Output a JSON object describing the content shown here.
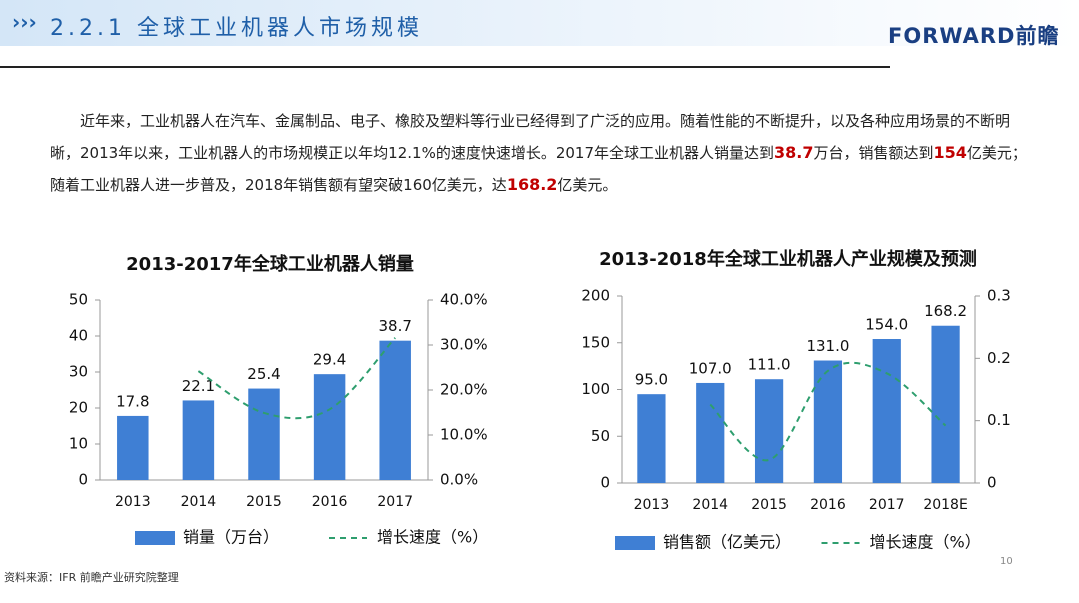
{
  "header": {
    "title": "2.2.1 全球工业机器人市场规模",
    "logo": "FORWARD前瞻"
  },
  "paragraph": [
    {
      "text": "近年来，工业机器人在汽车、金属制品、电子、橡胶及塑料等行业已经得到了广泛的应用。随着性能的不断提升，以及各种应用场景的不断明晰，2013年以来，工业机器人的市场规模正以年均12.1%的速度快速增长。2017年全球工业机器人销量达到"
    },
    {
      "text": "38.7",
      "bold": true
    },
    {
      "text": "万台，销售额达到"
    },
    {
      "text": "154",
      "bold": true
    },
    {
      "text": "亿美元；随着工业机器人进一步普及，2018年销售额有望突破160亿美元，达"
    },
    {
      "text": "168.2",
      "bold": true
    },
    {
      "text": "亿美元。"
    }
  ],
  "chart_data": [
    {
      "type": "bar",
      "title": "2013-2017年全球工业机器人销量",
      "categories": [
        "2013",
        "2014",
        "2015",
        "2016",
        "2017"
      ],
      "series": [
        {
          "name": "销量（万台）",
          "color": "#3f7fd4",
          "values": [
            17.8,
            22.1,
            25.4,
            29.4,
            38.7
          ]
        },
        {
          "name": "增长速度（%）",
          "color": "#2e9e6e",
          "type": "line",
          "axis": "y2",
          "values": [
            null,
            24.2,
            14.9,
            15.7,
            31.6
          ]
        }
      ],
      "ylim": [
        0,
        50
      ],
      "yticks": [
        0,
        10,
        20,
        30,
        40,
        50
      ],
      "y2lim": [
        0,
        40
      ],
      "y2ticks": [
        {
          "value": 0,
          "label": "0.0%"
        },
        {
          "value": 10,
          "label": "10.0%"
        },
        {
          "value": 20,
          "label": "20.0%"
        },
        {
          "value": 30,
          "label": "30.0%"
        },
        {
          "value": 40,
          "label": "40.0%"
        }
      ]
    },
    {
      "type": "bar",
      "title": "2013-2018年全球工业机器人产业规模及预测",
      "categories": [
        "2013",
        "2014",
        "2015",
        "2016",
        "2017",
        "2018E"
      ],
      "series": [
        {
          "name": "销售额（亿美元）",
          "color": "#3f7fd4",
          "values": [
            95,
            107,
            111,
            131,
            154,
            168.2
          ],
          "value_labels": [
            "95.0",
            "107.0",
            "111.0",
            "131.0",
            "154.0",
            "168.2"
          ]
        },
        {
          "name": "增长速度（%）",
          "color": "#2e9e6e",
          "type": "line",
          "axis": "y2",
          "values": [
            null,
            0.126,
            0.037,
            0.18,
            0.176,
            0.092
          ]
        }
      ],
      "ylim": [
        0,
        200
      ],
      "yticks": [
        0,
        50,
        100,
        150,
        200
      ],
      "y2lim": [
        0,
        0.3
      ],
      "y2ticks": [
        0,
        0.1,
        0.2,
        0.3
      ]
    }
  ],
  "footer": {
    "source": "资料来源：IFR 前瞻产业研究院整理",
    "page": "10"
  }
}
